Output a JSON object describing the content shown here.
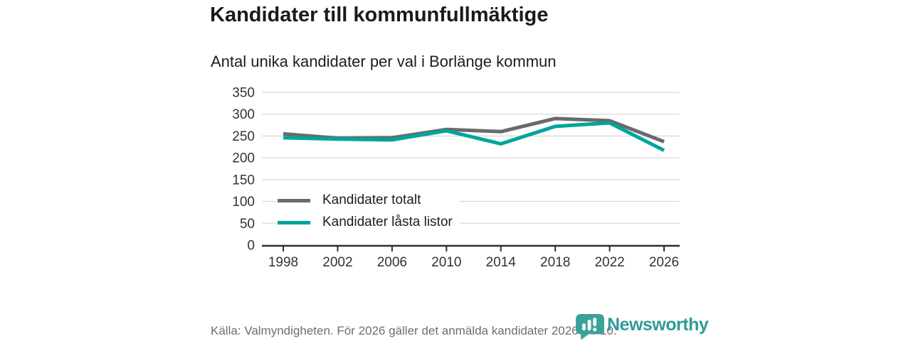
{
  "header": {
    "title": "Kandidater till kommunfullmäktige",
    "subtitle": "Antal unika kandidater per val i Borlänge kommun"
  },
  "chart_data": {
    "type": "line",
    "title": "Kandidater till kommunfullmäktige",
    "subtitle": "Antal unika kandidater per val i Borlänge kommun",
    "categories": [
      "1998",
      "2002",
      "2006",
      "2010",
      "2014",
      "2018",
      "2022",
      "2026"
    ],
    "series": [
      {
        "name": "Kandidater totalt",
        "color": "#696a6e",
        "values": [
          255,
          245,
          246,
          265,
          260,
          290,
          285,
          237
        ]
      },
      {
        "name": "Kandidater låsta listor",
        "color": "#00a59b",
        "values": [
          246,
          243,
          241,
          262,
          232,
          272,
          280,
          217
        ]
      }
    ],
    "xlabel": "",
    "ylabel": "",
    "ylim": [
      0,
      350
    ],
    "ytick_step": 50,
    "yticks": [
      "0",
      "50",
      "100",
      "150",
      "200",
      "250",
      "300",
      "350"
    ],
    "grid": "horizontal",
    "legend_position": "inside-bottom-left",
    "colors": {
      "gridline": "#d9d9d9",
      "axis": "#2d2d2d",
      "tick_label": "#333333"
    }
  },
  "footer": {
    "source": "Källa: Valmyndigheten. För 2026 gäller det anmälda kandidater 2026-04-10.",
    "brand": "Newsworthy",
    "brand_color": "#2e9b98",
    "brand_icon_color": "#3aa29b"
  }
}
